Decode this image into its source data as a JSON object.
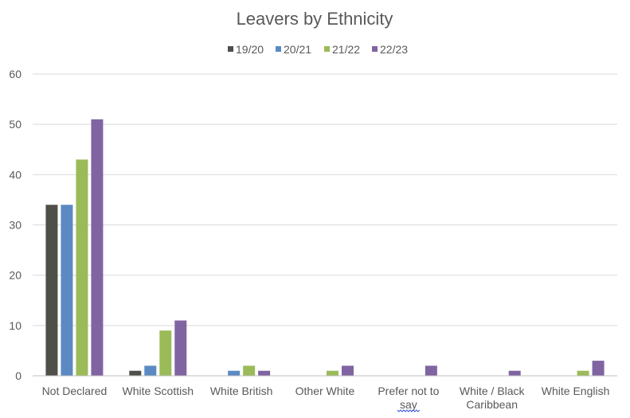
{
  "chart_data": {
    "type": "bar",
    "title": "Leavers by Ethnicity",
    "categories": [
      [
        "Not Declared"
      ],
      [
        "White Scottish"
      ],
      [
        "White British"
      ],
      [
        "Other White"
      ],
      [
        "Prefer not to",
        "say"
      ],
      [
        "White / Black",
        "Caribbean"
      ],
      [
        "White English"
      ]
    ],
    "series": [
      {
        "name": "19/20",
        "color": "#4f4f4a",
        "values": [
          34,
          1,
          0,
          0,
          0,
          0,
          0
        ]
      },
      {
        "name": "20/21",
        "color": "#5b8ac3",
        "values": [
          34,
          2,
          1,
          0,
          0,
          0,
          0
        ]
      },
      {
        "name": "21/22",
        "color": "#9bbb59",
        "values": [
          43,
          9,
          2,
          1,
          0,
          0,
          1
        ]
      },
      {
        "name": "22/23",
        "color": "#8064a2",
        "values": [
          51,
          11,
          1,
          2,
          2,
          1,
          3
        ]
      }
    ],
    "ylim": [
      0,
      60
    ],
    "yticks": [
      0,
      10,
      20,
      30,
      40,
      50,
      60
    ],
    "xlabel": "",
    "ylabel": "",
    "legend": "top",
    "grid": true
  }
}
